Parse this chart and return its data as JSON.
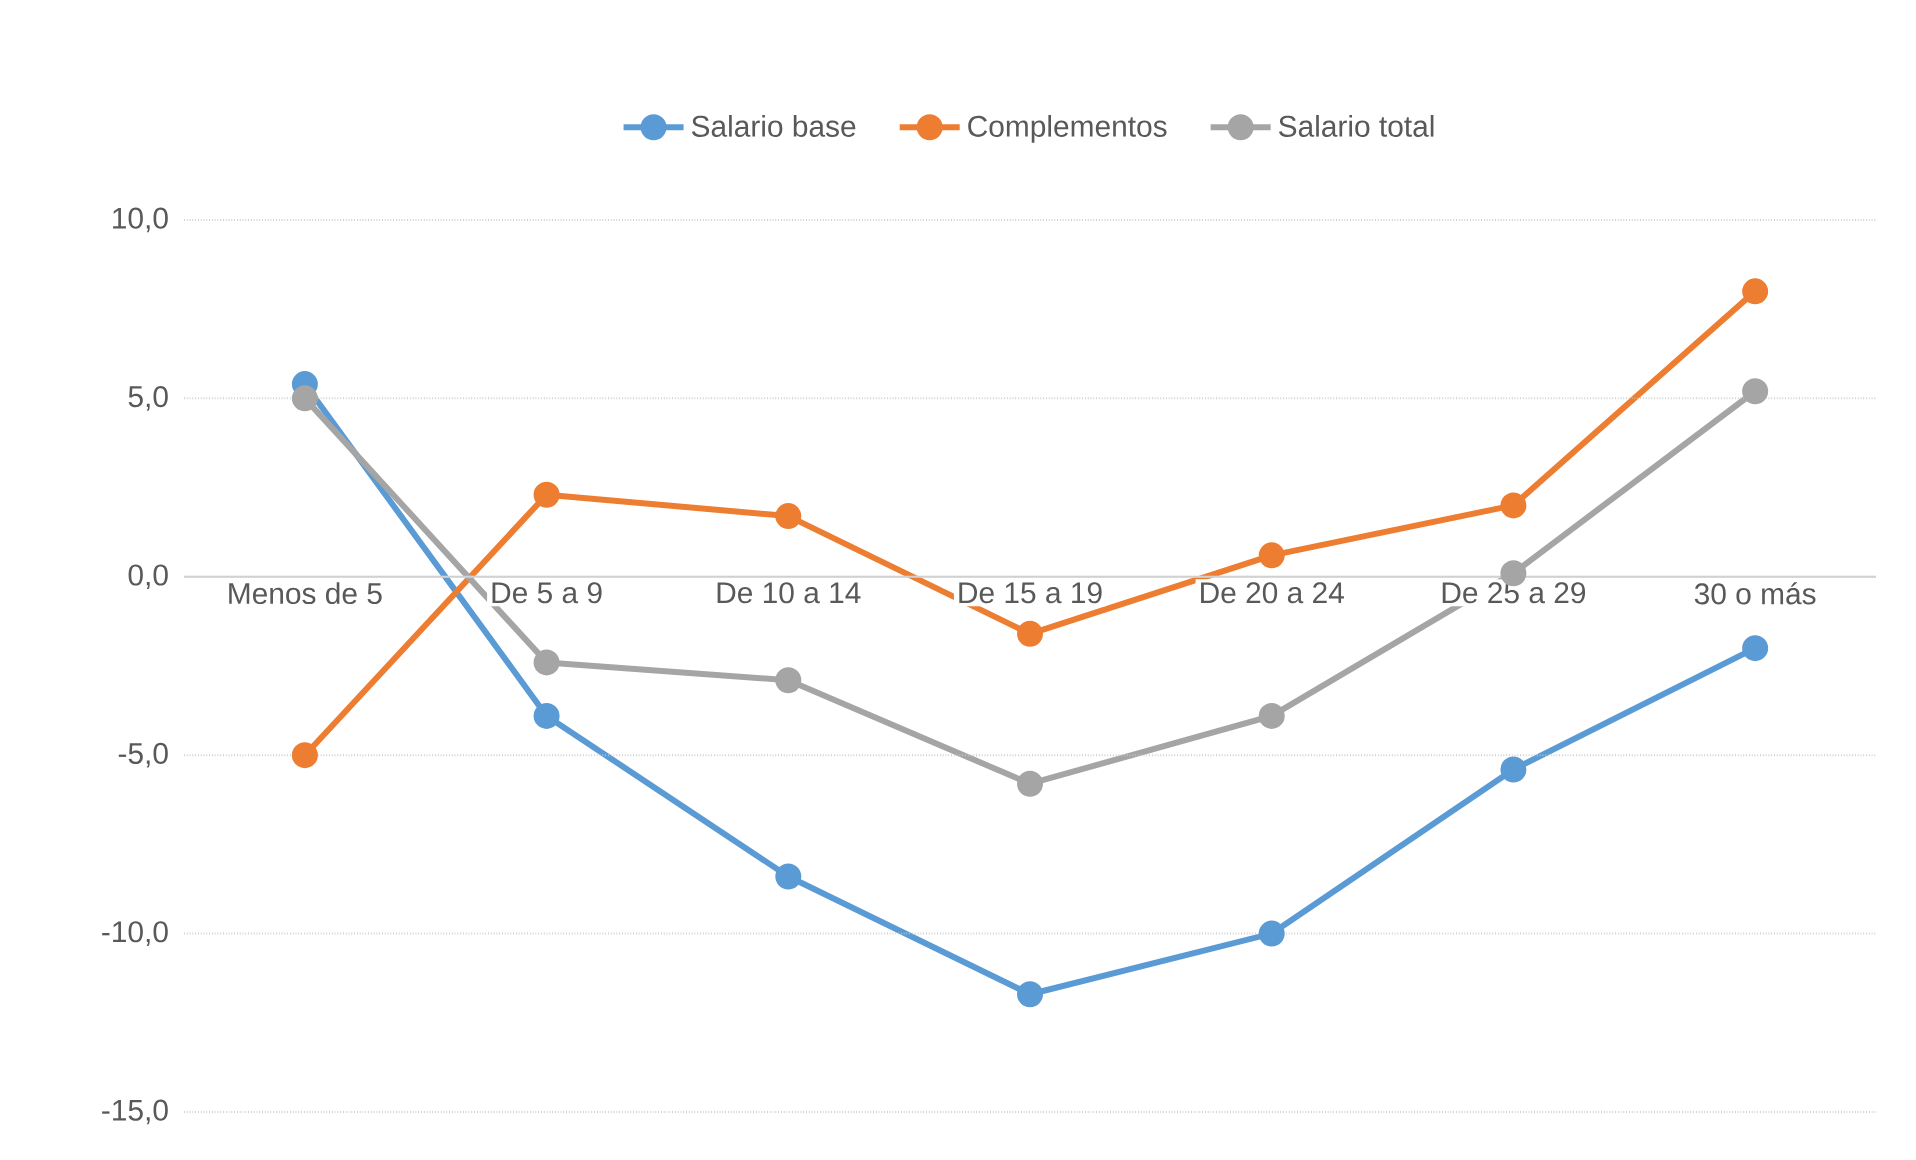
{
  "chart_data": {
    "type": "line",
    "categories": [
      "Menos de 5",
      "De 5 a 9",
      "De 10 a 14",
      "De 15 a 19",
      "De 20 a 24",
      "De 25 a 29",
      "30 o más"
    ],
    "series": [
      {
        "name": "Salario base",
        "color": "#5b9bd5",
        "values": [
          5.4,
          -3.9,
          -8.4,
          -11.7,
          -10.0,
          -5.4,
          -2.0
        ]
      },
      {
        "name": "Complementos",
        "color": "#ed7d31",
        "values": [
          -5.0,
          2.3,
          1.7,
          -1.6,
          0.6,
          2.0,
          8.0
        ]
      },
      {
        "name": "Salario total",
        "color": "#a5a5a5",
        "values": [
          5.0,
          -2.4,
          -2.9,
          -5.8,
          -3.9,
          0.1,
          5.2
        ]
      }
    ],
    "ylim": [
      -15,
      10
    ],
    "yticks": [
      {
        "value": -15,
        "label": "-15,0"
      },
      {
        "value": -10,
        "label": "-10,0"
      },
      {
        "value": -5,
        "label": "-5,0"
      },
      {
        "value": 0,
        "label": "0,0"
      },
      {
        "value": 5,
        "label": "5,0"
      },
      {
        "value": 10,
        "label": "10,0"
      }
    ],
    "grid": "y",
    "legend": "top",
    "marker": "circle",
    "line_style": "solid"
  }
}
